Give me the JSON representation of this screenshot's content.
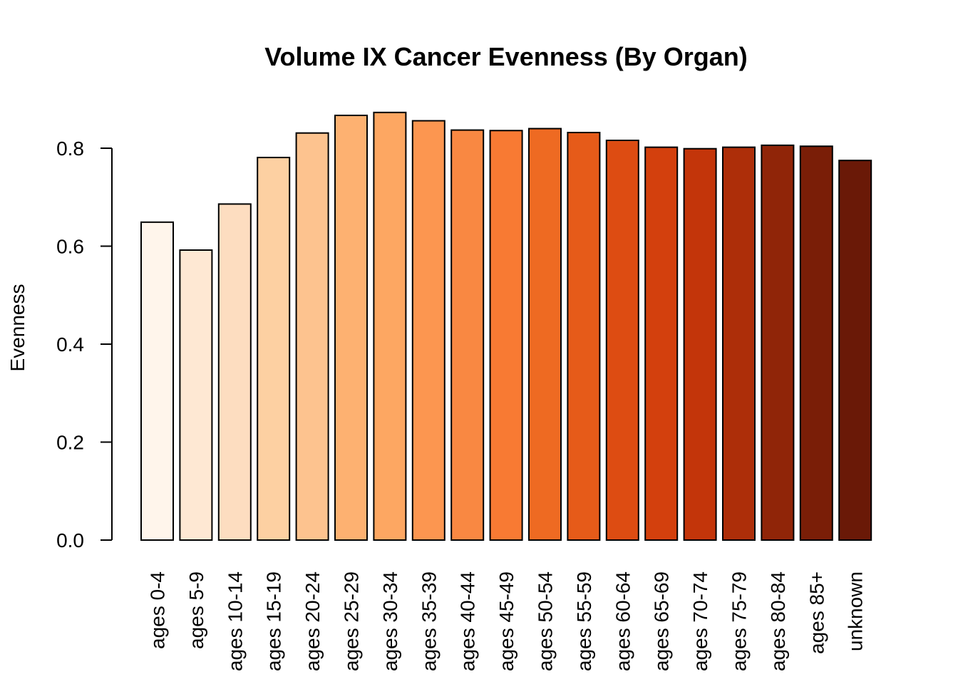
{
  "chart_data": {
    "type": "bar",
    "title": "Volume IX Cancer Evenness (By Organ)",
    "xlabel": "",
    "ylabel": "Evenness",
    "ylim": [
      0,
      0.8
    ],
    "yticks": [
      "0.0",
      "0.2",
      "0.4",
      "0.6",
      "0.8"
    ],
    "grid": false,
    "legend": "none",
    "categories": [
      "ages 0-4",
      "ages 5-9",
      "ages 10-14",
      "ages 15-19",
      "ages 20-24",
      "ages 25-29",
      "ages 30-34",
      "ages 35-39",
      "ages 40-44",
      "ages 45-49",
      "ages 50-54",
      "ages 55-59",
      "ages 60-64",
      "ages 65-69",
      "ages 70-74",
      "ages 75-79",
      "ages 80-84",
      "ages 85+",
      "unknown"
    ],
    "values": [
      0.649,
      0.592,
      0.686,
      0.781,
      0.831,
      0.867,
      0.873,
      0.856,
      0.837,
      0.836,
      0.84,
      0.832,
      0.816,
      0.802,
      0.799,
      0.802,
      0.806,
      0.804,
      0.775
    ],
    "colors": [
      "#FFF5EB",
      "#FEE8D3",
      "#FDDDC0",
      "#FDD0A2",
      "#FDC38F",
      "#FDB171",
      "#FDA762",
      "#FC9650",
      "#F98842",
      "#F87A33",
      "#EE6A22",
      "#E65B19",
      "#DD4C12",
      "#D3400D",
      "#C3350A",
      "#AD2E09",
      "#902508",
      "#7A1E07",
      "#6A1907"
    ]
  }
}
